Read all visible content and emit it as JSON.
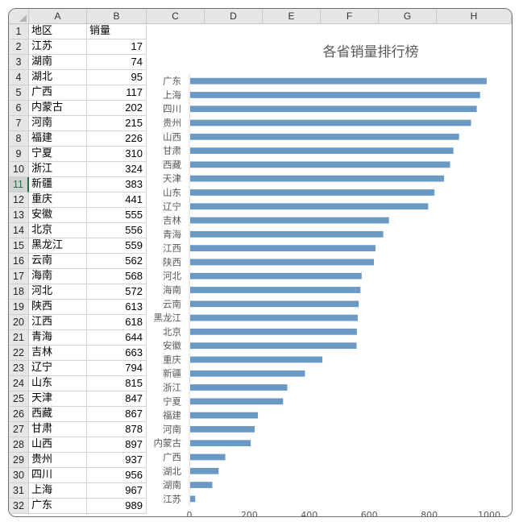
{
  "sheet": {
    "columns": [
      "A",
      "B",
      "C",
      "D",
      "E",
      "F",
      "G",
      "H"
    ],
    "row_numbers": [
      "1",
      "2",
      "3",
      "4",
      "5",
      "6",
      "7",
      "8",
      "9",
      "10",
      "11",
      "12",
      "13",
      "14",
      "15",
      "16",
      "17",
      "18",
      "19",
      "20",
      "21",
      "22",
      "23",
      "24",
      "25",
      "26",
      "27",
      "28",
      "29",
      "30",
      "31",
      "32"
    ],
    "selected_row": "11",
    "header": {
      "col_a": "地区",
      "col_b": "销量"
    },
    "rows": [
      {
        "region": "江苏",
        "sales": "17"
      },
      {
        "region": "湖南",
        "sales": "74"
      },
      {
        "region": "湖北",
        "sales": "95"
      },
      {
        "region": "广西",
        "sales": "117"
      },
      {
        "region": "内蒙古",
        "sales": "202"
      },
      {
        "region": "河南",
        "sales": "215"
      },
      {
        "region": "福建",
        "sales": "226"
      },
      {
        "region": "宁夏",
        "sales": "310"
      },
      {
        "region": "浙江",
        "sales": "324"
      },
      {
        "region": "新疆",
        "sales": "383"
      },
      {
        "region": "重庆",
        "sales": "441"
      },
      {
        "region": "安徽",
        "sales": "555"
      },
      {
        "region": "北京",
        "sales": "556"
      },
      {
        "region": "黑龙江",
        "sales": "559"
      },
      {
        "region": "云南",
        "sales": "562"
      },
      {
        "region": "海南",
        "sales": "568"
      },
      {
        "region": "河北",
        "sales": "572"
      },
      {
        "region": "陕西",
        "sales": "613"
      },
      {
        "region": "江西",
        "sales": "618"
      },
      {
        "region": "青海",
        "sales": "644"
      },
      {
        "region": "吉林",
        "sales": "663"
      },
      {
        "region": "辽宁",
        "sales": "794"
      },
      {
        "region": "山东",
        "sales": "815"
      },
      {
        "region": "天津",
        "sales": "847"
      },
      {
        "region": "西藏",
        "sales": "867"
      },
      {
        "region": "甘肃",
        "sales": "878"
      },
      {
        "region": "山西",
        "sales": "897"
      },
      {
        "region": "贵州",
        "sales": "937"
      },
      {
        "region": "四川",
        "sales": "956"
      },
      {
        "region": "上海",
        "sales": "967"
      },
      {
        "region": "广东",
        "sales": "989"
      }
    ]
  },
  "chart_data": {
    "type": "bar",
    "orientation": "horizontal",
    "title": "各省销量排行榜",
    "categories": [
      "江苏",
      "湖南",
      "湖北",
      "广西",
      "内蒙古",
      "河南",
      "福建",
      "宁夏",
      "浙江",
      "新疆",
      "重庆",
      "安徽",
      "北京",
      "黑龙江",
      "云南",
      "海南",
      "河北",
      "陕西",
      "江西",
      "青海",
      "吉林",
      "辽宁",
      "山东",
      "天津",
      "西藏",
      "甘肃",
      "山西",
      "贵州",
      "四川",
      "上海",
      "广东"
    ],
    "values": [
      17,
      74,
      95,
      117,
      202,
      215,
      226,
      310,
      324,
      383,
      441,
      555,
      556,
      559,
      562,
      568,
      572,
      613,
      618,
      644,
      663,
      794,
      815,
      847,
      867,
      878,
      897,
      937,
      956,
      967,
      989
    ],
    "x_ticks": [
      "0",
      "200",
      "400",
      "600",
      "800",
      "1000"
    ],
    "xlim": [
      0,
      1000
    ],
    "bar_color": "#6a9ac4",
    "grid": false,
    "legend": "none"
  }
}
